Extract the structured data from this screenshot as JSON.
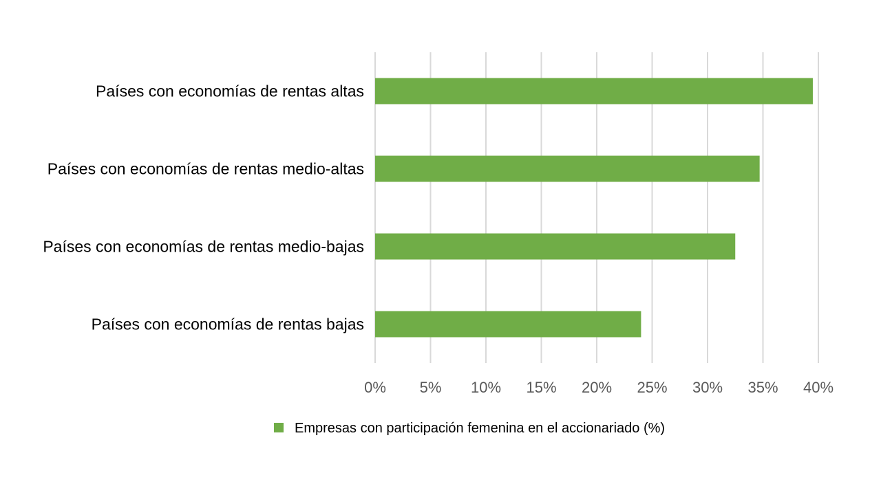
{
  "chart_data": {
    "type": "bar",
    "orientation": "horizontal",
    "categories": [
      "Países con economías de rentas altas",
      "Países con economías de rentas medio-altas",
      "Países con economías de rentas medio-bajas",
      "Países con economías de rentas bajas"
    ],
    "series": [
      {
        "name": "Empresas con participación femenina en el accionariado (%)",
        "values": [
          39.5,
          34.7,
          32.5,
          24.0
        ],
        "color": "#70AD47"
      }
    ],
    "xlim": [
      0,
      40
    ],
    "xticks": [
      0,
      5,
      10,
      15,
      20,
      25,
      30,
      35,
      40
    ],
    "xtick_labels": [
      "0%",
      "5%",
      "10%",
      "15%",
      "20%",
      "25%",
      "30%",
      "35%",
      "40%"
    ],
    "grid": "vertical",
    "legend_position": "bottom"
  }
}
